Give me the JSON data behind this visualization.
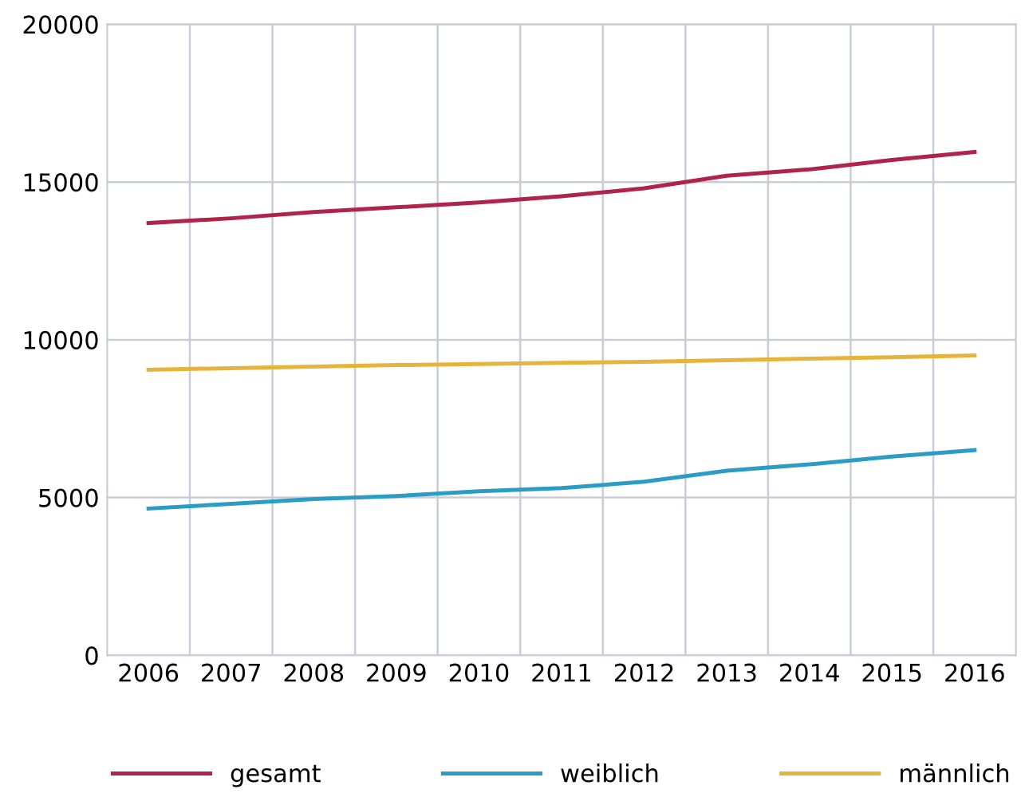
{
  "chart_data": {
    "type": "line",
    "categories": [
      "2006",
      "2007",
      "2008",
      "2009",
      "2010",
      "2011",
      "2012",
      "2013",
      "2014",
      "2015",
      "2016"
    ],
    "series": [
      {
        "name": "gesamt",
        "color": "#b0244c",
        "values": [
          13700,
          13850,
          14050,
          14200,
          14350,
          14550,
          14800,
          15200,
          15400,
          15700,
          15950
        ]
      },
      {
        "name": "weiblich",
        "color": "#2b9cc4",
        "values": [
          4650,
          4800,
          4950,
          5050,
          5200,
          5300,
          5500,
          5850,
          6050,
          6300,
          6500
        ]
      },
      {
        "name": "männlich",
        "color": "#e6b43c",
        "values": [
          9050,
          9100,
          9150,
          9200,
          9230,
          9270,
          9300,
          9350,
          9400,
          9450,
          9500
        ]
      }
    ],
    "ylim": [
      0,
      20000
    ],
    "yticks": [
      0,
      5000,
      10000,
      15000,
      20000
    ],
    "grid": true,
    "legend": "bottom",
    "marker": "none",
    "line_style": "solid"
  }
}
